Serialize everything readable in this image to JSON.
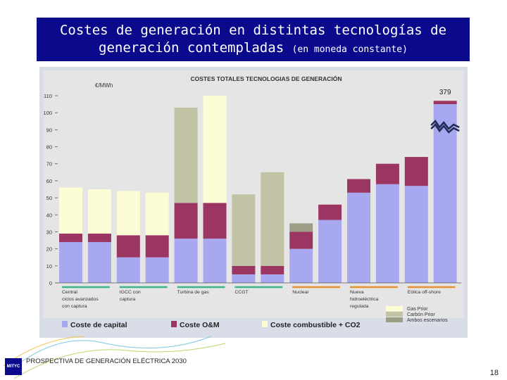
{
  "slide": {
    "title_line1": "Costes de generación en distintas tecnologías de",
    "title_line2": "generación contempladas",
    "title_sub": "(en moneda constante)",
    "footer": "PROSPECTIVA DE GENERACIÓN ELÉCTRICA 2030",
    "page_number": "18",
    "logo_text": "MITYC"
  },
  "chart_data": {
    "type": "bar",
    "title": "COSTES TOTALES TECNOLOGIAS DE GENERACIÓN",
    "ylabel": "€/MWh",
    "ylim": [
      0,
      110
    ],
    "yticks": [
      0,
      10,
      20,
      30,
      40,
      50,
      60,
      70,
      80,
      90,
      100,
      110
    ],
    "categories": [
      "Central c/c",
      "Central c/c",
      "IGCC",
      "IGCC",
      "Turbina gas",
      "Turbina gas",
      "CCGT",
      "CCGT",
      "Nuclear",
      "Nuclear",
      "Hidro",
      "Hidro",
      "Eólica",
      "Eólica off-shore"
    ],
    "series": [
      {
        "name": "Coste de capital",
        "color": "#a8a8f0",
        "values": [
          24,
          24,
          15,
          15,
          26,
          26,
          5,
          5,
          20,
          37,
          53,
          58,
          57,
          105
        ]
      },
      {
        "name": "Coste O&M",
        "color": "#9b3562",
        "values": [
          5,
          5,
          13,
          13,
          21,
          21,
          5,
          5,
          10,
          9,
          8,
          12,
          17,
          2
        ]
      },
      {
        "name": "Coste combustible + CO2 · Gas Prior",
        "color": "#fdfdd5",
        "values": [
          27,
          26,
          26,
          25,
          0,
          63,
          0,
          0,
          0,
          0,
          0,
          0,
          0,
          0
        ]
      },
      {
        "name": "Carbón Prior",
        "color": "#c2c2a4",
        "values": [
          0,
          0,
          0,
          0,
          56,
          0,
          42,
          55,
          0,
          0,
          0,
          0,
          0,
          0
        ]
      },
      {
        "name": "Ambos escenarios",
        "color": "#9e9e88",
        "values": [
          0,
          0,
          0,
          0,
          0,
          0,
          0,
          0,
          5,
          0,
          0,
          0,
          0,
          0
        ]
      }
    ],
    "x_group_labels": [
      {
        "label": "Central ciclos avanzados con captura",
        "lines": [
          "Central",
          "ciclos avanzados",
          "con captura"
        ]
      },
      {
        "label": "IGCC con captura",
        "lines": [
          "IGCC con",
          "captura"
        ]
      },
      {
        "label": "Turbina de gas",
        "lines": [
          "Turbina de gas"
        ]
      },
      {
        "label": "CCGT",
        "lines": [
          "CCGT"
        ]
      },
      {
        "label": "Nuclear",
        "lines": [
          "Nuclear"
        ]
      },
      {
        "label": "Nueva hidroeléctrica regulada",
        "lines": [
          "Nueva",
          "hidroeléctrica",
          "regulada"
        ]
      },
      {
        "label": "Eólica off-shore",
        "lines": [
          "Eólica off-shore"
        ]
      }
    ],
    "annotations": [
      {
        "text": "379",
        "category_index": 13
      }
    ],
    "legend": {
      "bottom": [
        "Coste de capital",
        "Coste O&M",
        "Coste combustible + CO2"
      ],
      "right": [
        "Gas Prior",
        "Carbón Prior",
        "Ambos escenarios"
      ]
    }
  }
}
